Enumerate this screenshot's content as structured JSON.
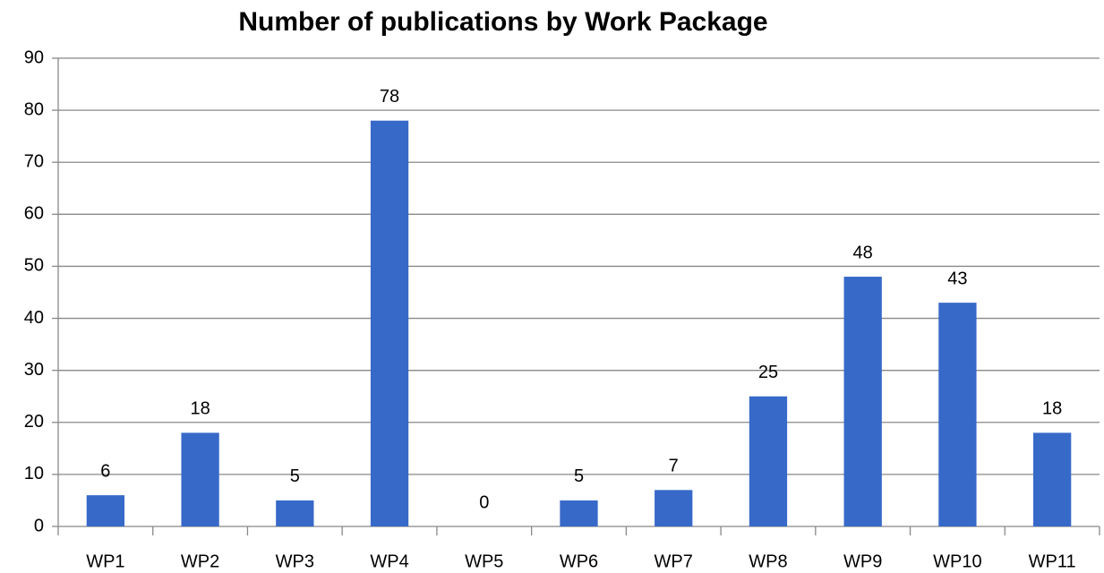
{
  "chart_data": {
    "type": "bar",
    "title": "Number of publications by Work Package",
    "categories": [
      "WP1",
      "WP2",
      "WP3",
      "WP4",
      "WP5",
      "WP6",
      "WP7",
      "WP8",
      "WP9",
      "WP10",
      "WP11"
    ],
    "values": [
      6,
      18,
      5,
      78,
      0,
      5,
      7,
      25,
      48,
      43,
      18
    ],
    "color": "#3769c8",
    "ylim": [
      0,
      90
    ],
    "yticks": [
      0,
      10,
      20,
      30,
      40,
      50,
      60,
      70,
      80,
      90
    ],
    "grid": true
  }
}
